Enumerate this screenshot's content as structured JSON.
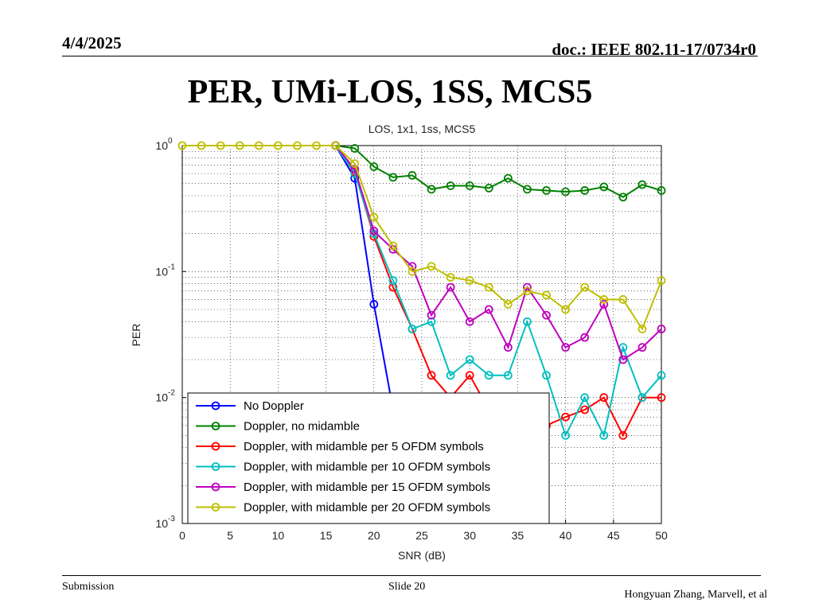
{
  "slide": {
    "date": "4/4/2025",
    "doc": "doc.: IEEE 802.11-17/0734r0",
    "title": "PER, UMi-LOS, 1SS, MCS5",
    "footer_left": "Submission",
    "footer_center": "Slide 20",
    "footer_right": "Hongyuan Zhang, Marvell, et al"
  },
  "chart_data": {
    "type": "line",
    "title": "LOS, 1x1, 1ss, MCS5",
    "xlabel": "SNR (dB)",
    "ylabel": "PER",
    "xlim": [
      0,
      50
    ],
    "ylim": [
      0.001,
      1
    ],
    "yscale": "log",
    "grid": true,
    "legend_position": "bottom-left",
    "x_ticks": [
      0,
      5,
      10,
      15,
      20,
      25,
      30,
      35,
      40,
      45,
      50
    ],
    "y_ticks": [
      {
        "value": 1,
        "base": "10",
        "exp": "0"
      },
      {
        "value": 0.1,
        "base": "10",
        "exp": "-1"
      },
      {
        "value": 0.01,
        "base": "10",
        "exp": "-2"
      },
      {
        "value": 0.001,
        "base": "10",
        "exp": "-3"
      }
    ],
    "series": [
      {
        "name": "No Doppler",
        "color": "#0000ff",
        "x": [
          16,
          18,
          20,
          22
        ],
        "y": [
          1,
          0.55,
          0.055,
          0.008
        ]
      },
      {
        "name": "Doppler, no midamble",
        "color": "#008000",
        "x": [
          16,
          18,
          20,
          22,
          24,
          26,
          28,
          30,
          32,
          34,
          36,
          38,
          40,
          42,
          44,
          46,
          48,
          50
        ],
        "y": [
          1,
          0.95,
          0.68,
          0.56,
          0.58,
          0.45,
          0.48,
          0.48,
          0.46,
          0.55,
          0.45,
          0.44,
          0.43,
          0.44,
          0.47,
          0.39,
          0.49,
          0.44
        ]
      },
      {
        "name": "Doppler, with midamble per 5 OFDM symbols",
        "color": "#ff0000",
        "x": [
          16,
          18,
          20,
          22,
          24,
          26,
          28,
          30,
          32,
          34,
          36,
          38,
          40,
          42,
          44,
          46,
          48,
          50
        ],
        "y": [
          1,
          0.62,
          0.19,
          0.075,
          0.035,
          0.015,
          0.01,
          0.015,
          0.008,
          0.006,
          0.006,
          0.006,
          0.007,
          0.008,
          0.01,
          0.005,
          0.01,
          0.01
        ]
      },
      {
        "name": "Doppler, with midamble per 10 OFDM symbols",
        "color": "#00bfbf",
        "x": [
          16,
          18,
          20,
          22,
          24,
          26,
          28,
          30,
          32,
          34,
          36,
          38,
          40,
          42,
          44,
          46,
          48,
          50
        ],
        "y": [
          1,
          0.6,
          0.2,
          0.085,
          0.035,
          0.04,
          0.015,
          0.02,
          0.015,
          0.015,
          0.04,
          0.015,
          0.005,
          0.01,
          0.005,
          0.025,
          0.01,
          0.015
        ]
      },
      {
        "name": "Doppler, with midamble per 15 OFDM symbols",
        "color": "#bf00bf",
        "x": [
          16,
          18,
          20,
          22,
          24,
          26,
          28,
          30,
          32,
          34,
          36,
          38,
          40,
          42,
          44,
          46,
          48,
          50
        ],
        "y": [
          1,
          0.65,
          0.21,
          0.15,
          0.11,
          0.045,
          0.075,
          0.04,
          0.05,
          0.025,
          0.075,
          0.045,
          0.025,
          0.03,
          0.055,
          0.02,
          0.025,
          0.035
        ]
      },
      {
        "name": "Doppler, with midamble per 20 OFDM symbols",
        "color": "#bfbf00",
        "x": [
          0,
          2,
          4,
          6,
          8,
          10,
          12,
          14,
          16,
          18,
          20,
          22,
          24,
          26,
          28,
          30,
          32,
          34,
          36,
          38,
          40,
          42,
          44,
          46,
          48,
          50
        ],
        "y": [
          1,
          1,
          1,
          1,
          1,
          1,
          1,
          1,
          1,
          0.72,
          0.27,
          0.16,
          0.1,
          0.11,
          0.09,
          0.085,
          0.075,
          0.055,
          0.07,
          0.065,
          0.05,
          0.075,
          0.06,
          0.06,
          0.035,
          0.085
        ]
      }
    ]
  }
}
